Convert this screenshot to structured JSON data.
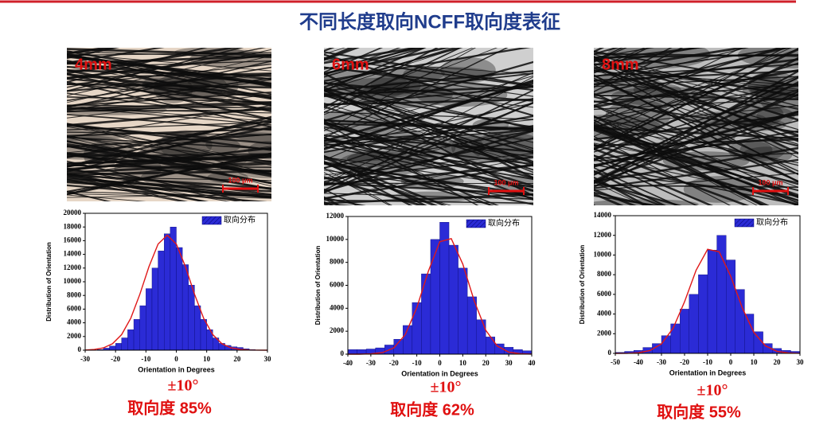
{
  "header": {
    "title": "不同长度取向NCFF取向度表征"
  },
  "panels": [
    {
      "image_label": "4mm",
      "scale_bar": "100 μm",
      "caption_range": "±10°",
      "caption_degree": "取向度 85%"
    },
    {
      "image_label": "6mm",
      "scale_bar": "100 μm",
      "caption_range": "±10°",
      "caption_degree": "取向度 62%"
    },
    {
      "image_label": "8mm",
      "scale_bar": "100 μm",
      "caption_range": "±10°",
      "caption_degree": "取向度 55%"
    }
  ],
  "chart_data": [
    {
      "type": "histogram",
      "x_label": "Orientation in Degrees",
      "y_label": "Distribution of Orientation",
      "legend": "取向分布",
      "color": "#2b2bd6",
      "bins": [
        -26,
        -24,
        -22,
        -20,
        -18,
        -16,
        -14,
        -12,
        -10,
        -8,
        -6,
        -4,
        -2,
        0,
        2,
        4,
        6,
        8,
        10,
        12,
        14,
        16,
        18,
        20,
        22,
        24,
        26
      ],
      "values": [
        100,
        300,
        600,
        1000,
        1800,
        3000,
        4500,
        6500,
        9000,
        12000,
        14500,
        17000,
        18000,
        15000,
        12500,
        9500,
        6500,
        4500,
        3000,
        1800,
        1000,
        700,
        500,
        400,
        200,
        100
      ],
      "fit": {
        "color": "#e01818",
        "x": [
          -30,
          -27,
          -24,
          -21,
          -18,
          -15,
          -12,
          -9,
          -6,
          -3,
          0,
          3,
          6,
          9,
          12,
          15,
          18,
          21,
          24,
          27,
          30
        ],
        "values": [
          26,
          100,
          333,
          943,
          2274,
          4672,
          8178,
          12201,
          15508,
          16800,
          15508,
          12201,
          8178,
          4672,
          2274,
          943,
          333,
          100,
          26,
          6,
          1
        ]
      },
      "xlim": [
        -30,
        30
      ],
      "xticks": [
        -30,
        -20,
        -10,
        0,
        10,
        20,
        30
      ],
      "ylim": [
        0,
        20000
      ],
      "yticks": [
        0,
        2000,
        4000,
        6000,
        8000,
        10000,
        12000,
        14000,
        16000,
        18000,
        20000
      ]
    },
    {
      "type": "histogram",
      "x_label": "Orientation in Degrees",
      "y_label": "Distribution of Orientation",
      "legend": "取向分布",
      "color": "#2b2bd6",
      "bins": [
        -40,
        -36,
        -32,
        -28,
        -24,
        -20,
        -16,
        -12,
        -8,
        -4,
        0,
        4,
        8,
        12,
        16,
        20,
        24,
        28,
        32,
        36,
        40
      ],
      "values": [
        400,
        400,
        450,
        550,
        800,
        1300,
        2500,
        4500,
        7000,
        10000,
        11500,
        9500,
        7500,
        5000,
        3000,
        1500,
        900,
        600,
        400,
        300
      ],
      "fit": {
        "color": "#e01818",
        "x": [
          -40,
          -35,
          -30,
          -25,
          -20,
          -15,
          -10,
          -5,
          0,
          5,
          10,
          15,
          20,
          25,
          30,
          35,
          40
        ],
        "values": [
          0,
          3,
          25,
          134,
          550,
          1710,
          4040,
          7220,
          9800,
          10070,
          7850,
          4640,
          2080,
          705,
          181,
          35,
          5
        ]
      },
      "xlim": [
        -40,
        40
      ],
      "xticks": [
        -40,
        -30,
        -20,
        -10,
        0,
        10,
        20,
        30,
        40
      ],
      "ylim": [
        0,
        12000
      ],
      "yticks": [
        0,
        2000,
        4000,
        6000,
        8000,
        10000,
        12000
      ]
    },
    {
      "type": "histogram",
      "x_label": "Orientation in Degrees",
      "y_label": "Distribution of Orientation",
      "legend": "取向分布",
      "color": "#2b2bd6",
      "bins": [
        -50,
        -46,
        -42,
        -38,
        -34,
        -30,
        -26,
        -22,
        -18,
        -14,
        -10,
        -6,
        -2,
        2,
        6,
        10,
        14,
        18,
        22,
        26,
        30
      ],
      "values": [
        100,
        200,
        300,
        600,
        1000,
        1800,
        3000,
        4500,
        6000,
        8000,
        10500,
        12000,
        9500,
        6500,
        4000,
        2200,
        1000,
        500,
        300,
        200
      ],
      "fit": {
        "color": "#e01818",
        "x": [
          -50,
          -45,
          -40,
          -35,
          -30,
          -25,
          -20,
          -15,
          -10,
          -5,
          0,
          5,
          10,
          15,
          20,
          25,
          30
        ],
        "values": [
          2,
          11,
          65,
          282,
          960,
          2545,
          5255,
          8455,
          10585,
          10325,
          7845,
          4640,
          2135,
          765,
          214,
          47,
          8
        ]
      },
      "xlim": [
        -50,
        30
      ],
      "xticks": [
        -50,
        -40,
        -30,
        -20,
        -10,
        0,
        10,
        20,
        30
      ],
      "ylim": [
        0,
        14000
      ],
      "yticks": [
        0,
        2000,
        4000,
        6000,
        8000,
        10000,
        12000,
        14000
      ]
    }
  ]
}
